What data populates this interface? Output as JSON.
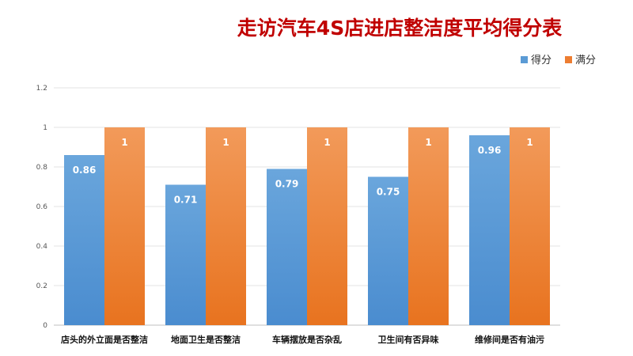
{
  "chart_data": {
    "type": "bar",
    "title": "走访汽车4S店进店整洁度平均得分表",
    "categories": [
      "店头的外立面是否整洁",
      "地面卫生是否整洁",
      "车辆摆放是否杂乱",
      "卫生间有否异味",
      "维修间是否有油污"
    ],
    "series": [
      {
        "name": "得分",
        "values": [
          0.86,
          0.71,
          0.79,
          0.75,
          0.96
        ],
        "color": "#5b9bd5"
      },
      {
        "name": "满分",
        "values": [
          1,
          1,
          1,
          1,
          1
        ],
        "color": "#ed7d31"
      }
    ],
    "yticks": [
      "0",
      "0.2",
      "0.4",
      "0.6",
      "0.8",
      "1",
      "1.2"
    ],
    "ylim": [
      0,
      1.2
    ],
    "grid": true,
    "legend": "top-right",
    "data_labels": true
  }
}
